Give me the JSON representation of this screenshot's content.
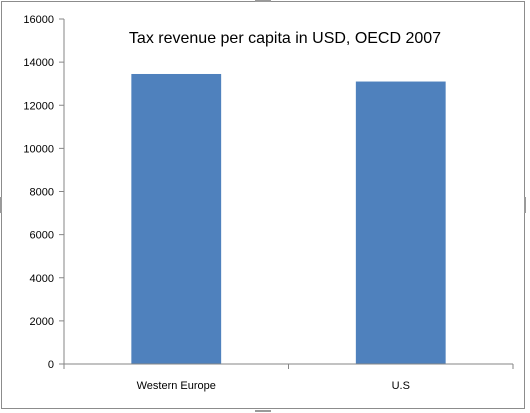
{
  "chart_data": {
    "type": "bar",
    "title": "Tax revenue per capita in USD, OECD 2007",
    "categories": [
      "Western Europe",
      "U.S"
    ],
    "values": [
      13450,
      13100
    ],
    "xlabel": "",
    "ylabel": "",
    "ylim": [
      0,
      16000
    ],
    "yticks": [
      "0",
      "2000",
      "4000",
      "6000",
      "8000",
      "10000",
      "12000",
      "14000",
      "16000"
    ],
    "grid": false,
    "legend": "none",
    "bar_color": "#4f81bd",
    "axis_color": "#868686"
  }
}
